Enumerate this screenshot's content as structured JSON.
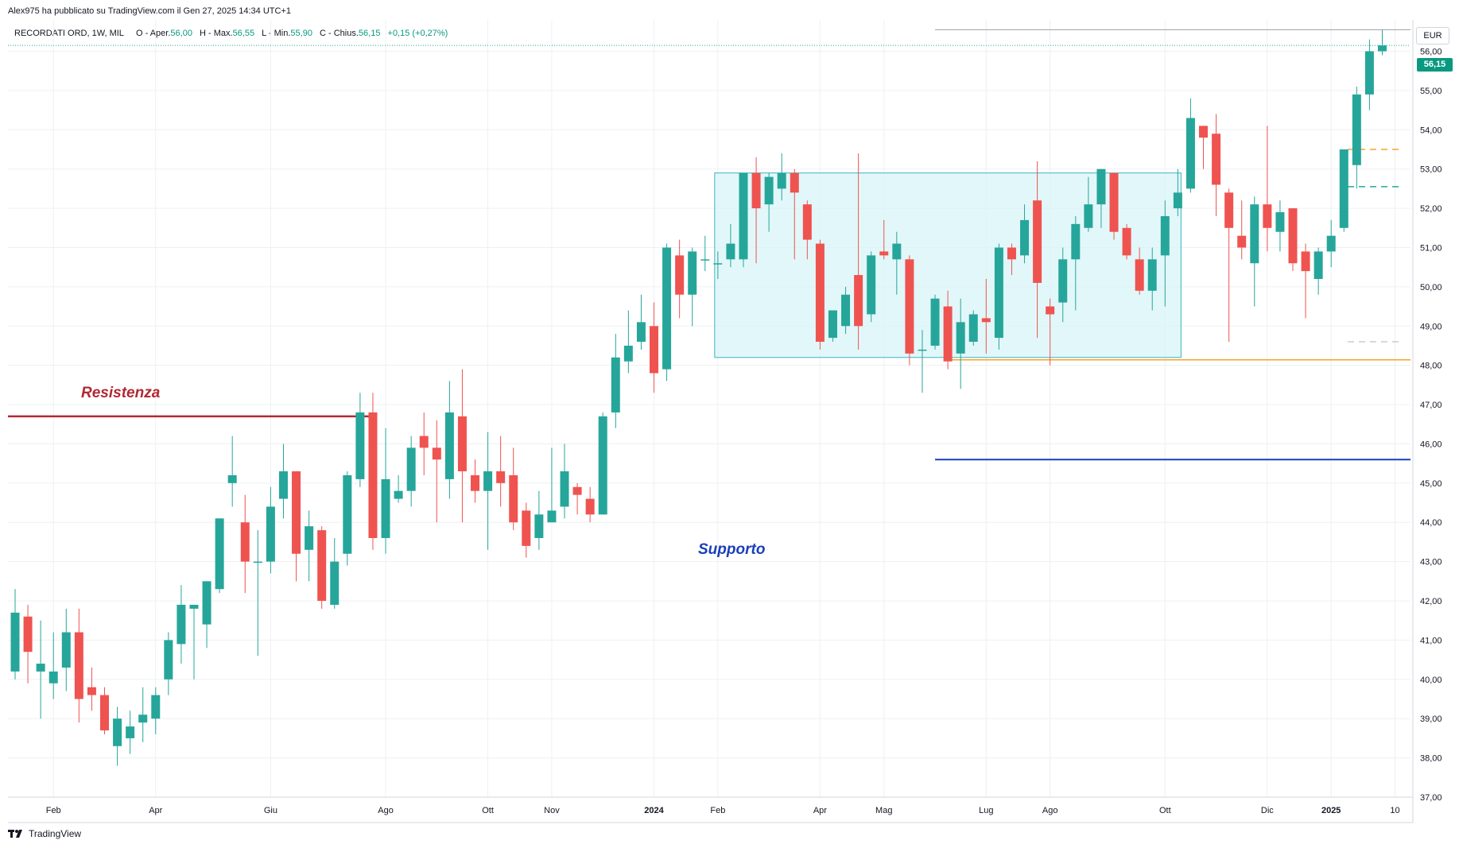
{
  "header": {
    "published_by": "Alex975 ha pubblicato su TradingView.com il Gen 27, 2025 14:34 UTC+1"
  },
  "legend": {
    "symbol": "RECORDATI ORD, 1W, MIL",
    "open_label": "O - Aper.",
    "open_value": "56,00",
    "high_label": "H - Max.",
    "high_value": "56,55",
    "low_label": "L - Min.",
    "low_value": "55,90",
    "close_label": "C - Chius.",
    "close_value": "56,15",
    "change_value": "+0,15 (+0,27%)"
  },
  "price_axis": {
    "currency": "EUR",
    "last_price_badge": "56,15"
  },
  "footer": {
    "brand": "TradingView"
  },
  "colors": {
    "up": "#26a69a",
    "down": "#ef5350",
    "resistance": "#b22833",
    "support": "#1a3fb8",
    "range_fill": "#d8f4f7",
    "range_stroke": "#3bb3c3",
    "orange": "#f5a623",
    "grid": "#eef0f3"
  },
  "chart_data": {
    "type": "candlestick",
    "title": "RECORDATI ORD, 1W, MIL",
    "ylabel": "EUR",
    "ylim": [
      37,
      56.8
    ],
    "y_ticks": [
      "37,00",
      "38,00",
      "39,00",
      "40,00",
      "41,00",
      "42,00",
      "43,00",
      "44,00",
      "45,00",
      "46,00",
      "47,00",
      "48,00",
      "49,00",
      "50,00",
      "51,00",
      "52,00",
      "53,00",
      "54,00",
      "55,00",
      "56,00"
    ],
    "x_tick_labels": [
      {
        "label": "Feb",
        "bar": 3,
        "bold": false
      },
      {
        "label": "Apr",
        "bar": 11,
        "bold": false
      },
      {
        "label": "Giu",
        "bar": 20,
        "bold": false
      },
      {
        "label": "Ago",
        "bar": 29,
        "bold": false
      },
      {
        "label": "Ott",
        "bar": 37,
        "bold": false
      },
      {
        "label": "Nov",
        "bar": 42,
        "bold": false
      },
      {
        "label": "2024",
        "bar": 50,
        "bold": true
      },
      {
        "label": "Feb",
        "bar": 55,
        "bold": false
      },
      {
        "label": "Apr",
        "bar": 63,
        "bold": false
      },
      {
        "label": "Mag",
        "bar": 68,
        "bold": false
      },
      {
        "label": "Lug",
        "bar": 76,
        "bold": false
      },
      {
        "label": "Ago",
        "bar": 81,
        "bold": false
      },
      {
        "label": "Ott",
        "bar": 90,
        "bold": false
      },
      {
        "label": "Dic",
        "bar": 98,
        "bold": false
      },
      {
        "label": "2025",
        "bar": 103,
        "bold": true
      },
      {
        "label": "10",
        "bar": 108,
        "bold": false
      }
    ],
    "candles": [
      [
        40.2,
        41.7,
        42.3,
        40.0
      ],
      [
        41.6,
        40.7,
        41.9,
        39.9
      ],
      [
        40.2,
        40.4,
        41.5,
        39.0
      ],
      [
        39.9,
        40.2,
        41.2,
        39.5
      ],
      [
        40.3,
        41.2,
        41.8,
        39.7
      ],
      [
        41.2,
        39.5,
        41.8,
        38.9
      ],
      [
        39.8,
        39.6,
        40.3,
        39.2
      ],
      [
        39.6,
        38.7,
        39.8,
        38.6
      ],
      [
        38.3,
        39.0,
        39.3,
        37.8
      ],
      [
        38.5,
        38.8,
        39.2,
        38.1
      ],
      [
        38.9,
        39.1,
        39.8,
        38.4
      ],
      [
        39.0,
        39.6,
        39.8,
        38.6
      ],
      [
        40.0,
        41.0,
        41.2,
        39.6
      ],
      [
        40.9,
        41.9,
        42.4,
        40.4
      ],
      [
        41.8,
        41.9,
        41.9,
        40.0
      ],
      [
        41.4,
        42.5,
        42.5,
        40.8
      ],
      [
        42.3,
        44.1,
        44.1,
        42.2
      ],
      [
        45.0,
        45.2,
        46.2,
        44.4
      ],
      [
        44.0,
        43.0,
        44.7,
        42.2
      ],
      [
        43.0,
        43.0,
        43.8,
        40.6
      ],
      [
        43.0,
        44.4,
        44.9,
        42.7
      ],
      [
        44.6,
        45.3,
        46.0,
        44.1
      ],
      [
        45.3,
        43.2,
        45.3,
        42.5
      ],
      [
        43.3,
        43.9,
        44.3,
        42.5
      ],
      [
        43.8,
        42.0,
        43.9,
        41.8
      ],
      [
        41.9,
        43.0,
        43.6,
        41.8
      ],
      [
        43.2,
        45.2,
        45.3,
        42.9
      ],
      [
        45.1,
        46.8,
        47.3,
        44.9
      ],
      [
        46.8,
        43.6,
        47.3,
        43.3
      ],
      [
        43.6,
        45.1,
        46.4,
        43.2
      ],
      [
        44.6,
        44.8,
        45.2,
        44.5
      ],
      [
        44.8,
        45.9,
        46.2,
        44.4
      ],
      [
        46.2,
        45.9,
        46.8,
        45.2
      ],
      [
        45.9,
        45.6,
        46.6,
        44.0
      ],
      [
        45.1,
        46.8,
        47.6,
        44.6
      ],
      [
        46.7,
        45.3,
        47.9,
        44.0
      ],
      [
        45.2,
        44.8,
        45.6,
        44.5
      ],
      [
        44.8,
        45.3,
        46.3,
        43.3
      ],
      [
        45.3,
        45.0,
        46.2,
        44.4
      ],
      [
        45.2,
        44.0,
        45.9,
        43.8
      ],
      [
        44.3,
        43.4,
        44.5,
        43.1
      ],
      [
        43.6,
        44.2,
        44.8,
        43.3
      ],
      [
        44.0,
        44.3,
        45.9,
        44.0
      ],
      [
        44.4,
        45.3,
        46.0,
        44.1
      ],
      [
        44.9,
        44.7,
        45.0,
        44.2
      ],
      [
        44.6,
        44.2,
        44.9,
        44.0
      ],
      [
        44.2,
        46.7,
        46.8,
        44.2
      ],
      [
        46.8,
        48.2,
        48.8,
        46.4
      ],
      [
        48.1,
        48.5,
        49.4,
        47.8
      ],
      [
        48.6,
        49.1,
        49.8,
        48.4
      ],
      [
        49.0,
        47.8,
        49.6,
        47.3
      ],
      [
        47.9,
        51.0,
        51.1,
        47.6
      ],
      [
        50.8,
        49.8,
        51.2,
        49.2
      ],
      [
        49.8,
        50.9,
        51.0,
        49.0
      ],
      [
        50.7,
        50.7,
        51.3,
        50.4
      ],
      [
        50.6,
        50.6,
        50.9,
        50.2
      ],
      [
        50.7,
        51.1,
        51.6,
        50.5
      ],
      [
        50.7,
        52.9,
        52.9,
        50.5
      ],
      [
        52.9,
        52.0,
        53.3,
        50.6
      ],
      [
        52.1,
        52.8,
        52.9,
        51.4
      ],
      [
        52.5,
        52.9,
        53.4,
        52.2
      ],
      [
        52.9,
        52.4,
        53.0,
        50.7
      ],
      [
        52.1,
        51.2,
        52.2,
        50.7
      ],
      [
        51.1,
        48.6,
        51.2,
        48.4
      ],
      [
        48.7,
        49.4,
        49.4,
        48.6
      ],
      [
        49.0,
        49.8,
        50.0,
        48.8
      ],
      [
        50.3,
        49.0,
        53.4,
        48.4
      ],
      [
        49.3,
        50.8,
        50.9,
        49.1
      ],
      [
        50.9,
        50.8,
        51.7,
        50.7
      ],
      [
        50.7,
        51.1,
        51.4,
        49.8
      ],
      [
        50.7,
        48.3,
        50.8,
        48.0
      ],
      [
        48.4,
        48.4,
        48.9,
        47.3
      ],
      [
        48.5,
        49.7,
        49.8,
        48.4
      ],
      [
        49.5,
        48.1,
        49.9,
        47.9
      ],
      [
        48.3,
        49.1,
        49.7,
        47.4
      ],
      [
        48.6,
        49.3,
        49.4,
        48.5
      ],
      [
        49.2,
        49.1,
        50.2,
        48.3
      ],
      [
        48.7,
        51.0,
        51.1,
        48.4
      ],
      [
        51.0,
        50.7,
        51.1,
        50.3
      ],
      [
        50.8,
        51.7,
        52.1,
        50.6
      ],
      [
        52.2,
        50.1,
        53.2,
        48.7
      ],
      [
        49.5,
        49.3,
        49.7,
        48.0
      ],
      [
        49.6,
        50.7,
        51.0,
        49.1
      ],
      [
        50.7,
        51.6,
        51.8,
        49.4
      ],
      [
        51.5,
        52.1,
        52.8,
        51.4
      ],
      [
        52.1,
        53.0,
        53.0,
        51.5
      ],
      [
        52.9,
        51.4,
        52.9,
        51.2
      ],
      [
        51.5,
        50.8,
        51.6,
        50.7
      ],
      [
        50.7,
        49.9,
        51.0,
        49.8
      ],
      [
        49.9,
        50.7,
        51.0,
        49.4
      ],
      [
        50.8,
        51.8,
        52.2,
        49.5
      ],
      [
        52.0,
        52.4,
        53.0,
        51.8
      ],
      [
        52.5,
        54.3,
        54.8,
        52.4
      ],
      [
        54.1,
        53.8,
        54.1,
        53.0
      ],
      [
        53.9,
        52.6,
        54.4,
        51.8
      ],
      [
        52.4,
        51.5,
        52.5,
        48.6
      ],
      [
        51.3,
        51.0,
        52.2,
        50.7
      ],
      [
        50.6,
        52.1,
        52.3,
        49.5
      ],
      [
        52.1,
        51.5,
        54.1,
        50.9
      ],
      [
        51.4,
        51.9,
        52.2,
        50.9
      ],
      [
        52.0,
        50.6,
        52.0,
        50.4
      ],
      [
        50.9,
        50.4,
        51.1,
        49.2
      ],
      [
        50.2,
        50.9,
        51.0,
        49.8
      ],
      [
        50.9,
        51.3,
        51.7,
        50.5
      ],
      [
        51.5,
        53.5,
        53.5,
        51.4
      ],
      [
        53.1,
        54.9,
        55.1,
        52.5
      ],
      [
        54.9,
        56.0,
        56.3,
        54.5
      ],
      [
        56.0,
        56.15,
        56.55,
        55.9
      ]
    ],
    "annotations": [
      {
        "type": "hline",
        "name": "resistance",
        "price": 46.7,
        "label": "Resistenza"
      },
      {
        "type": "hline",
        "name": "support",
        "price": 45.6,
        "label": "Supporto"
      },
      {
        "type": "rect",
        "name": "trading-range",
        "top": 52.9,
        "bottom": 48.2
      },
      {
        "type": "hline",
        "name": "range-floor",
        "price": 48.2
      }
    ],
    "last_price": 56.15
  }
}
